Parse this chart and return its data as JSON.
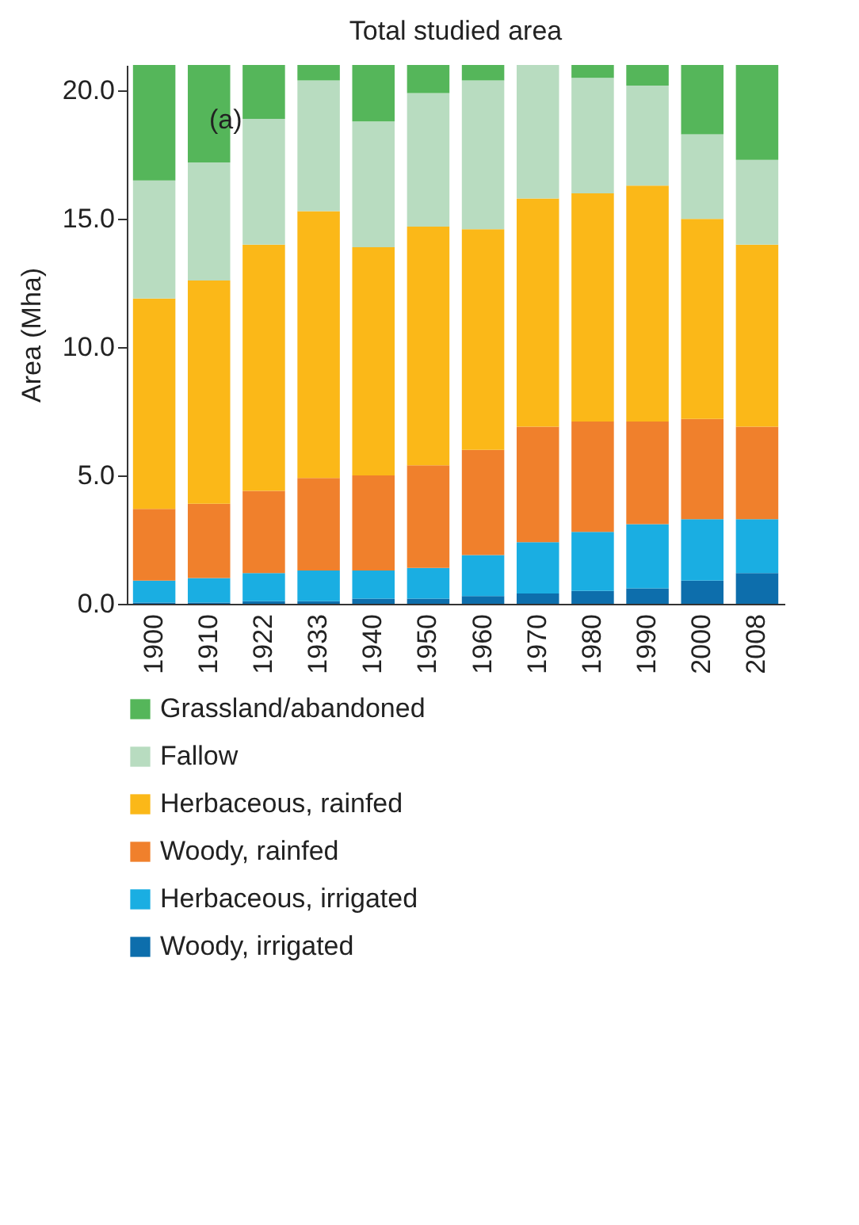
{
  "chart_data": {
    "type": "bar",
    "title": "Total studied area",
    "ylabel": "Area (Mha)",
    "stacked": true,
    "legend": "bottom",
    "grid": false,
    "categories": [
      "1900",
      "1910",
      "1922",
      "1933",
      "1940",
      "1950",
      "1960",
      "1970",
      "1980",
      "1990",
      "2000",
      "2008"
    ],
    "ylim": [
      0,
      21
    ],
    "yticks": [
      {
        "value": 0,
        "label": "0.0"
      },
      {
        "value": 5,
        "label": "5.0"
      },
      {
        "value": 10,
        "label": "10.0"
      },
      {
        "value": 15,
        "label": "15.0"
      },
      {
        "value": 20,
        "label": "20.0"
      }
    ],
    "annotations": [
      "(a)"
    ],
    "series": [
      {
        "name": "Woody, irrigated",
        "color": "#0d6eac",
        "values": [
          0.05,
          0.05,
          0.1,
          0.1,
          0.2,
          0.2,
          0.3,
          0.4,
          0.5,
          0.6,
          0.9,
          1.2
        ]
      },
      {
        "name": "Herbaceous, irrigated",
        "color": "#1aaee2",
        "values": [
          0.85,
          0.95,
          1.1,
          1.2,
          1.1,
          1.2,
          1.6,
          2.0,
          2.3,
          2.5,
          2.4,
          2.1
        ]
      },
      {
        "name": "Woody, rainfed",
        "color": "#f0802c",
        "values": [
          2.8,
          2.9,
          3.2,
          3.6,
          3.7,
          4.0,
          4.1,
          4.5,
          4.3,
          4.0,
          3.9,
          3.6
        ]
      },
      {
        "name": "Herbaceous, rainfed",
        "color": "#fbb818",
        "values": [
          8.2,
          8.7,
          9.6,
          10.4,
          8.9,
          9.3,
          8.6,
          8.9,
          8.9,
          9.2,
          7.8,
          7.1
        ]
      },
      {
        "name": "Fallow",
        "color": "#b8dcc0",
        "values": [
          4.6,
          4.6,
          4.9,
          5.1,
          4.9,
          5.2,
          5.8,
          5.2,
          4.5,
          3.9,
          3.3,
          3.3
        ]
      },
      {
        "name": "Grassland/abandoned",
        "color": "#55b65a",
        "values": [
          4.5,
          3.8,
          2.1,
          0.6,
          2.2,
          1.1,
          0.6,
          0,
          0.5,
          0.8,
          2.7,
          3.7
        ]
      }
    ]
  }
}
